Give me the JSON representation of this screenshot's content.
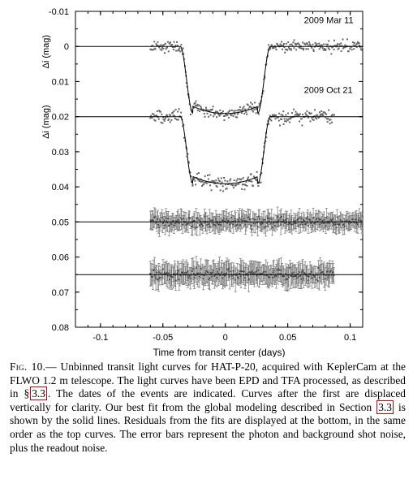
{
  "chart_data": {
    "type": "scatter",
    "xlabel": "Time from transit center (days)",
    "ylabel": "Δi (mag)",
    "xlim": [
      -0.12,
      0.11
    ],
    "ylim": [
      0.08,
      -0.01
    ],
    "y_reversed": true,
    "xticks": [
      -0.1,
      -0.05,
      0,
      0.05,
      0.1
    ],
    "xtick_labels": [
      "-0.1",
      "-0.05",
      "0",
      "0.05",
      "0.1"
    ],
    "yticks": [
      -0.01,
      0,
      0.01,
      0.02,
      0.03,
      0.04,
      0.05,
      0.06,
      0.07,
      0.08
    ],
    "ytick_labels": [
      "-0.01",
      "0",
      "0.01",
      "0.02",
      "0.03",
      "0.04",
      "0.05",
      "0.06",
      "0.07",
      "0.08"
    ],
    "grid": false,
    "transit_params": {
      "t1": 0.036,
      "t2": 0.026,
      "depth": 0.0195
    },
    "series": [
      {
        "name": "2009 Mar 11",
        "kind": "light_curve",
        "offset": 0.0,
        "x_range": [
          -0.06,
          0.11
        ],
        "n": 340,
        "scatter": 0.0016
      },
      {
        "name": "2009 Oct 21",
        "kind": "light_curve",
        "offset": 0.02,
        "x_range": [
          -0.06,
          0.087
        ],
        "n": 290,
        "scatter": 0.002
      },
      {
        "name": "",
        "kind": "residuals",
        "offset": 0.05,
        "x_range": [
          -0.06,
          0.11
        ],
        "n": 260,
        "scatter": 0.0014,
        "err": 0.0022
      },
      {
        "name": "",
        "kind": "residuals",
        "offset": 0.065,
        "x_range": [
          -0.06,
          0.087
        ],
        "n": 230,
        "scatter": 0.0016,
        "err": 0.0028
      }
    ],
    "annotations": [
      {
        "text": "2009 Mar 11",
        "x": 0.063,
        "y": -0.0067
      },
      {
        "text": "2009 Oct 21",
        "x": 0.063,
        "y": 0.0132
      }
    ]
  },
  "caption": {
    "label": "Fig. 10.",
    "text_1": "— Unbinned transit light curves for HAT-P-20, acquired with KeplerCam at the FLWO 1.2 m telescope. The light curves have been EPD and TFA processed, as described in §",
    "ref_1": "3.3",
    "text_2": ". The dates of the events are indicated. Curves after the first are displaced vertically for clarity. Our best fit from the global modeling described in Section",
    "ref_2": "3.3",
    "text_3": "is shown by the solid lines. Residuals from the fits are displayed at the bottom, in the same order as the top curves. The error bars represent the photon and background shot noise, plus the readout noise."
  }
}
